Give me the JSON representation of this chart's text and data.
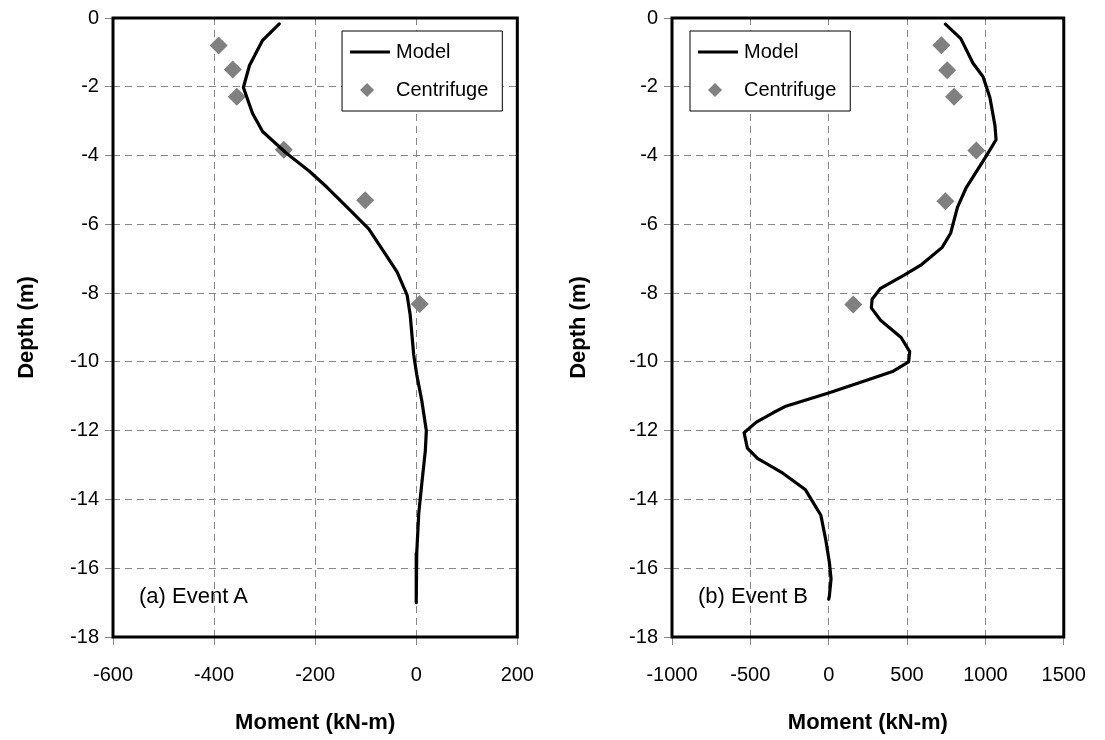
{
  "chart_data": [
    {
      "type": "scatter",
      "xlabel": "Moment (kN-m)",
      "ylabel": "Depth (m)",
      "annotations": [
        "(a) Event A"
      ],
      "xlim": [
        -600,
        200
      ],
      "xticks": [
        -600,
        -400,
        -200,
        0,
        200
      ],
      "ylim": [
        -18,
        0
      ],
      "yticks": [
        -18,
        -16,
        -14,
        -12,
        -10,
        -8,
        -6,
        -4,
        -2,
        0
      ],
      "grid": true,
      "legend": "top right",
      "series": [
        {
          "name": "Model",
          "type": "line",
          "color": "#000000",
          "line_style": "solid",
          "marker": "none",
          "x": [
            -271,
            -304,
            -330,
            -342,
            -324,
            -304,
            -258,
            -212,
            -176,
            -133,
            -94,
            -38,
            -18,
            -12,
            -5,
            1,
            11,
            20,
            18,
            11,
            5,
            1,
            0
          ],
          "values": [
            -0.17,
            -0.65,
            -1.38,
            -2.02,
            -2.77,
            -3.3,
            -3.92,
            -4.45,
            -4.93,
            -5.56,
            -6.13,
            -7.38,
            -8.06,
            -8.63,
            -9.8,
            -10.37,
            -11.13,
            -12,
            -12.58,
            -13.54,
            -14.4,
            -15.56,
            -17
          ]
        },
        {
          "name": "Centrifuge",
          "type": "scatter",
          "color": "#808080",
          "marker": "diamond",
          "x": [
            -391,
            -363,
            -355,
            -262,
            -101,
            7
          ],
          "values": [
            -0.8,
            -1.5,
            -2.29,
            -3.83,
            -5.3,
            -8.32
          ]
        }
      ]
    },
    {
      "type": "scatter",
      "xlabel": "Moment (kN-m)",
      "ylabel": "Depth (m)",
      "annotations": [
        "(b) Event B"
      ],
      "xlim": [
        -1000,
        1500
      ],
      "xticks": [
        -1000,
        -500,
        0,
        500,
        1000,
        1500
      ],
      "ylim": [
        -18,
        0
      ],
      "yticks": [
        -18,
        -16,
        -14,
        -12,
        -10,
        -8,
        -6,
        -4,
        -2,
        0
      ],
      "grid": true,
      "legend": "top left",
      "series": [
        {
          "name": "Model",
          "type": "line",
          "color": "#000000",
          "line_style": "solid",
          "marker": "none",
          "x": [
            745,
            843,
            920,
            985,
            1029,
            1061,
            1068,
            1007,
            876,
            822,
            778,
            724,
            593,
            484,
            331,
            277,
            272,
            331,
            462,
            517,
            510,
            407,
            266,
            4,
            -279,
            -355,
            -464,
            -540,
            -519,
            -453,
            -301,
            -148,
            -50,
            -17,
            4,
            15,
            4,
            0
          ],
          "values": [
            -0.18,
            -0.6,
            -1.31,
            -1.71,
            -2.32,
            -3.13,
            -3.54,
            -4,
            -4.95,
            -5.5,
            -6.26,
            -6.67,
            -7.17,
            -7.47,
            -7.86,
            -8.18,
            -8.43,
            -8.79,
            -9.29,
            -9.7,
            -10,
            -10.28,
            -10.5,
            -10.9,
            -11.3,
            -11.48,
            -11.76,
            -12.06,
            -12.51,
            -12.81,
            -13.21,
            -13.72,
            -14.46,
            -15.22,
            -15.82,
            -16.31,
            -16.82,
            -16.9
          ]
        },
        {
          "name": "Centrifuge",
          "type": "scatter",
          "color": "#808080",
          "marker": "diamond",
          "x": [
            719,
            756,
            800,
            942,
            745,
            157
          ],
          "values": [
            -0.79,
            -1.52,
            -2.29,
            -3.85,
            -5.33,
            -8.33
          ]
        }
      ]
    }
  ]
}
